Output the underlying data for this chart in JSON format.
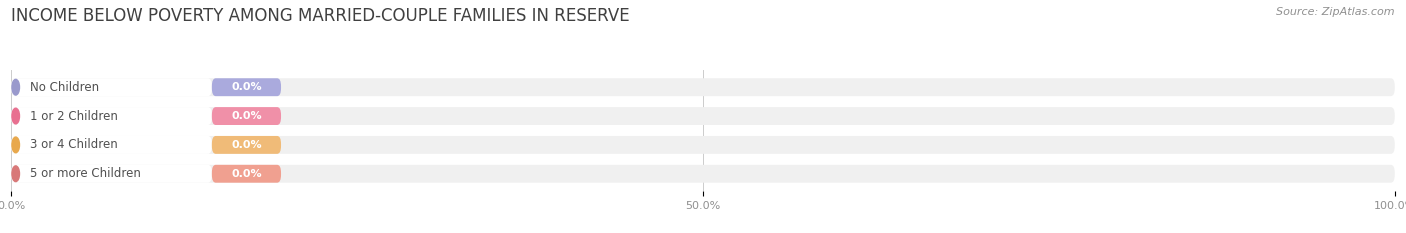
{
  "title": "INCOME BELOW POVERTY AMONG MARRIED-COUPLE FAMILIES IN RESERVE",
  "source": "Source: ZipAtlas.com",
  "categories": [
    "No Children",
    "1 or 2 Children",
    "3 or 4 Children",
    "5 or more Children"
  ],
  "values": [
    0.0,
    0.0,
    0.0,
    0.0
  ],
  "dot_colors": [
    "#9999cc",
    "#e87090",
    "#e8a84c",
    "#d87878"
  ],
  "value_pill_colors": [
    "#aaaadd",
    "#f090a8",
    "#f0bb78",
    "#f0a090"
  ],
  "bar_bg_color": "#f0f0f0",
  "white_section_color": "#ffffff",
  "title_color": "#404040",
  "source_color": "#909090",
  "tick_label_color": "#909090",
  "value_label_color": "#ffffff",
  "category_label_color": "#505050",
  "xticks": [
    0,
    50,
    100
  ],
  "xlim": [
    0,
    100
  ],
  "bar_height": 0.62,
  "figsize": [
    14.06,
    2.33
  ],
  "dpi": 100,
  "title_fontsize": 12,
  "source_fontsize": 8,
  "category_fontsize": 8.5,
  "value_fontsize": 8,
  "tick_fontsize": 8,
  "rounding": 0.28
}
